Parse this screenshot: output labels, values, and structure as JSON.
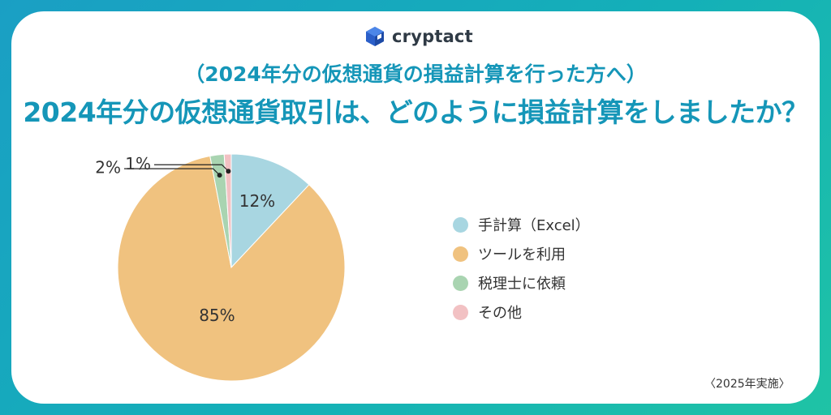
{
  "brand": {
    "name": "cryptact",
    "logo_icon": "cube-icon",
    "icon_color": "#2b5fc9"
  },
  "header": {
    "subtitle": "（2024年分の仮想通貨の損益計算を行った方へ）",
    "title": "2024年分の仮想通貨取引は、どのように損益計算をしましたか？"
  },
  "footer": {
    "note": "〈2025年実施〉"
  },
  "chart_data": {
    "type": "pie",
    "title": "2024年分の仮想通貨取引は、どのように損益計算をしましたか？",
    "start_direction": "top",
    "direction": "clockwise",
    "legend_position": "right",
    "slices": [
      {
        "label": "手計算（Excel）",
        "value": 12,
        "value_label": "12%",
        "color": "#a8d6e1"
      },
      {
        "label": "ツールを利用",
        "value": 85,
        "value_label": "85%",
        "color": "#f0c27f"
      },
      {
        "label": "税理士に依頼",
        "value": 2,
        "value_label": "2%",
        "color": "#a9d4b1"
      },
      {
        "label": "その他",
        "value": 1,
        "value_label": "1%",
        "color": "#f2c1c3"
      }
    ]
  }
}
